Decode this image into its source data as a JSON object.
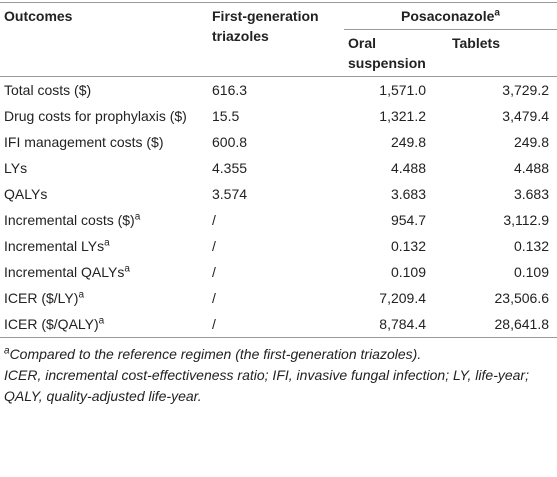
{
  "table": {
    "header": {
      "outcomes": "Outcomes",
      "first_gen": "First-generation triazoles",
      "posaconazole": "Posaconazole",
      "posaconazole_sup": "a",
      "oral": "Oral suspension",
      "tablets": "Tablets"
    },
    "rows": [
      {
        "label": "Total costs ($)",
        "cells": [
          "616.3",
          "1,571.0",
          "3,729.2"
        ]
      },
      {
        "label": "Drug costs for prophylaxis ($)",
        "cells": [
          "15.5",
          "1,321.2",
          "3,479.4"
        ]
      },
      {
        "label": "IFI management costs ($)",
        "cells": [
          "600.8",
          "249.8",
          "249.8"
        ]
      },
      {
        "label": "LYs",
        "cells": [
          "4.355",
          "4.488",
          "4.488"
        ]
      },
      {
        "label": "QALYs",
        "cells": [
          "3.574",
          "3.683",
          "3.683"
        ]
      },
      {
        "label": "Incremental costs ($)",
        "sup": "a",
        "cells": [
          "/",
          "954.7",
          "3,112.9"
        ]
      },
      {
        "label": "Incremental LYs",
        "sup": "a",
        "cells": [
          "/",
          "0.132",
          "0.132"
        ]
      },
      {
        "label": "Incremental QALYs",
        "sup": "a",
        "cells": [
          "/",
          "0.109",
          "0.109"
        ]
      },
      {
        "label": "ICER ($/LY)",
        "sup": "a",
        "cells": [
          "/",
          "7,209.4",
          "23,506.6"
        ]
      },
      {
        "label": "ICER ($/QALY)",
        "sup": "a",
        "cells": [
          "/",
          "8,784.4",
          "28,641.8"
        ]
      }
    ]
  },
  "footnotes": {
    "note_sup": "a",
    "note": "Compared to the reference regimen (the first-generation triazoles).",
    "abbreviations": "ICER, incremental cost-effectiveness ratio; IFI, invasive fungal infection; LY, life-year; QALY, quality-adjusted life-year."
  }
}
